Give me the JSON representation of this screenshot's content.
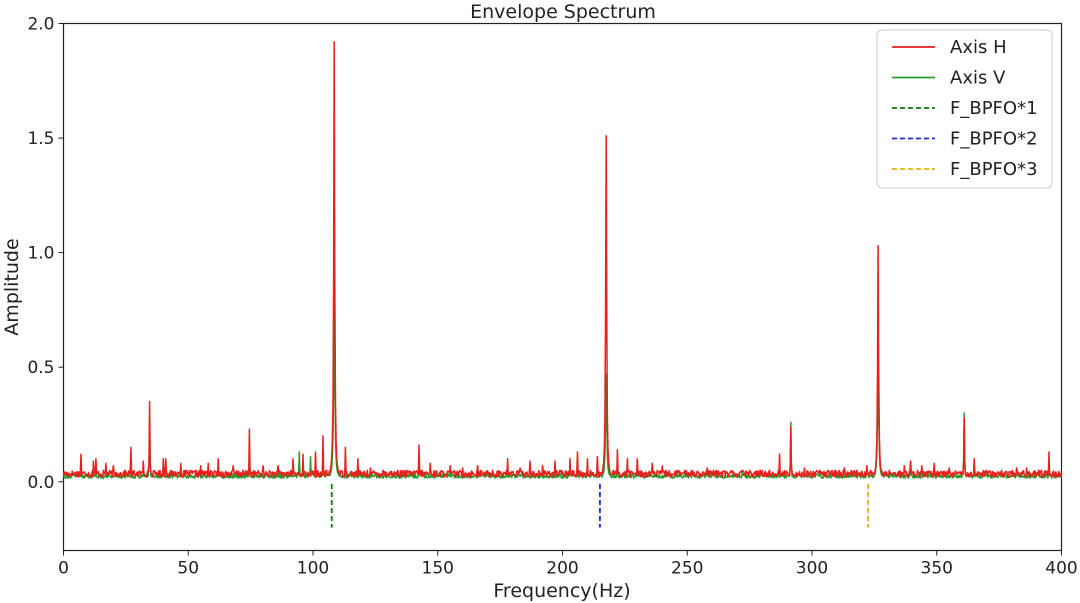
{
  "chart_data": {
    "type": "line",
    "title": "Envelope Spectrum",
    "xlabel": "Frequency(Hz)",
    "ylabel": "Amplitude",
    "xlim": [
      0,
      400
    ],
    "ylim": [
      -0.3,
      2.0
    ],
    "xticks": [
      0,
      50,
      100,
      150,
      200,
      250,
      300,
      350,
      400
    ],
    "yticks": [
      0.0,
      0.5,
      1.0,
      1.5,
      2.0
    ],
    "xtick_labels": [
      "0",
      "50",
      "100",
      "150",
      "200",
      "250",
      "300",
      "350",
      "400"
    ],
    "ytick_labels": [
      "0.0",
      "0.5",
      "1.0",
      "1.5",
      "2.0"
    ],
    "grid": false,
    "legend_position": "top-right",
    "series": [
      {
        "name": "Axis H",
        "color": "#e8201e",
        "peaks": [
          [
            7,
            0.12
          ],
          [
            12,
            0.09
          ],
          [
            13,
            0.1
          ],
          [
            17,
            0.08
          ],
          [
            20,
            0.07
          ],
          [
            27,
            0.15
          ],
          [
            32,
            0.09
          ],
          [
            34.5,
            0.35
          ],
          [
            40,
            0.1
          ],
          [
            41,
            0.1
          ],
          [
            47,
            0.08
          ],
          [
            55,
            0.07
          ],
          [
            58,
            0.08
          ],
          [
            62,
            0.1
          ],
          [
            68,
            0.07
          ],
          [
            74.5,
            0.23
          ],
          [
            80,
            0.07
          ],
          [
            86,
            0.07
          ],
          [
            92,
            0.1
          ],
          [
            96,
            0.12
          ],
          [
            101,
            0.13
          ],
          [
            104,
            0.2
          ],
          [
            108.5,
            1.9
          ],
          [
            113,
            0.15
          ],
          [
            118,
            0.1
          ],
          [
            123,
            0.06
          ],
          [
            128,
            0.05
          ],
          [
            134,
            0.05
          ],
          [
            142.5,
            0.16
          ],
          [
            147,
            0.08
          ],
          [
            155,
            0.07
          ],
          [
            160,
            0.06
          ],
          [
            166,
            0.07
          ],
          [
            172,
            0.05
          ],
          [
            178,
            0.1
          ],
          [
            183,
            0.06
          ],
          [
            187,
            0.09
          ],
          [
            192,
            0.07
          ],
          [
            197,
            0.09
          ],
          [
            203,
            0.1
          ],
          [
            206,
            0.13
          ],
          [
            210,
            0.1
          ],
          [
            214,
            0.11
          ],
          [
            217.5,
            1.49
          ],
          [
            222,
            0.14
          ],
          [
            226,
            0.1
          ],
          [
            230,
            0.1
          ],
          [
            236,
            0.08
          ],
          [
            240,
            0.07
          ],
          [
            246,
            0.05
          ],
          [
            252,
            0.05
          ],
          [
            258,
            0.06
          ],
          [
            266,
            0.04
          ],
          [
            272,
            0.05
          ],
          [
            278,
            0.04
          ],
          [
            283,
            0.05
          ],
          [
            287,
            0.12
          ],
          [
            291.5,
            0.24
          ],
          [
            297,
            0.06
          ],
          [
            303,
            0.05
          ],
          [
            308,
            0.05
          ],
          [
            313,
            0.06
          ],
          [
            318,
            0.05
          ],
          [
            322,
            0.07
          ],
          [
            326.5,
            1.01
          ],
          [
            331,
            0.05
          ],
          [
            337,
            0.07
          ],
          [
            339.5,
            0.09
          ],
          [
            344,
            0.07
          ],
          [
            349,
            0.08
          ],
          [
            355,
            0.06
          ],
          [
            361,
            0.28
          ],
          [
            365,
            0.1
          ],
          [
            370,
            0.05
          ],
          [
            376,
            0.05
          ],
          [
            382,
            0.06
          ],
          [
            386,
            0.06
          ],
          [
            392,
            0.05
          ],
          [
            395,
            0.13
          ],
          [
            399,
            0.04
          ]
        ]
      },
      {
        "name": "Axis V",
        "color": "#2a9a2a",
        "peaks": [
          [
            7,
            0.06
          ],
          [
            13,
            0.08
          ],
          [
            17,
            0.05
          ],
          [
            27,
            0.07
          ],
          [
            34.5,
            0.27
          ],
          [
            40,
            0.08
          ],
          [
            47,
            0.05
          ],
          [
            58,
            0.05
          ],
          [
            62,
            0.06
          ],
          [
            74.5,
            0.08
          ],
          [
            86,
            0.05
          ],
          [
            94.5,
            0.13
          ],
          [
            99,
            0.11
          ],
          [
            104,
            0.09
          ],
          [
            108.5,
            0.82
          ],
          [
            113,
            0.06
          ],
          [
            123,
            0.04
          ],
          [
            142.5,
            0.1
          ],
          [
            155,
            0.04
          ],
          [
            178,
            0.05
          ],
          [
            192,
            0.05
          ],
          [
            203,
            0.05
          ],
          [
            210,
            0.06
          ],
          [
            217.5,
            0.45
          ],
          [
            222,
            0.06
          ],
          [
            230,
            0.05
          ],
          [
            246,
            0.04
          ],
          [
            258,
            0.05
          ],
          [
            272,
            0.04
          ],
          [
            287,
            0.07
          ],
          [
            291.5,
            0.26
          ],
          [
            308,
            0.04
          ],
          [
            318,
            0.04
          ],
          [
            322,
            0.06
          ],
          [
            326.5,
            0.52
          ],
          [
            339.5,
            0.09
          ],
          [
            349,
            0.05
          ],
          [
            361,
            0.3
          ],
          [
            376,
            0.04
          ],
          [
            395,
            0.09
          ]
        ]
      }
    ],
    "markers": [
      {
        "name": "F_BPFO*1",
        "x": 107.5,
        "y0": -0.2,
        "y1": -0.01,
        "color": "#0a7a0a"
      },
      {
        "name": "F_BPFO*2",
        "x": 215.0,
        "y0": -0.2,
        "y1": -0.01,
        "color": "#1a2fd6"
      },
      {
        "name": "F_BPFO*3",
        "x": 322.5,
        "y0": -0.2,
        "y1": -0.01,
        "color": "#e0b400"
      }
    ]
  }
}
